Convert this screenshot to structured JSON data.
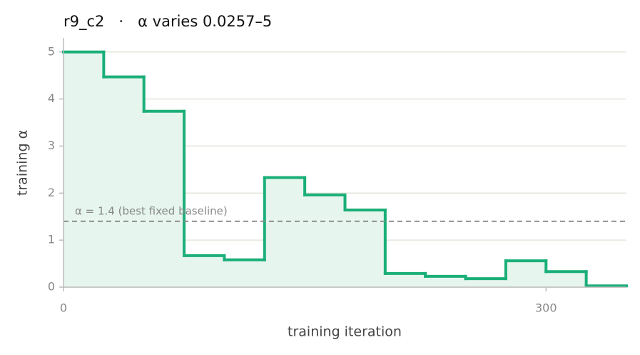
{
  "chart_data": {
    "type": "step",
    "title": "r9_c2   ·   α varies 0.0257–5",
    "x_label": "training iteration",
    "y_label": "training α",
    "x": [
      0,
      25,
      50,
      75,
      100,
      125,
      150,
      175,
      200,
      225,
      250,
      275,
      300,
      325
    ],
    "values": [
      5,
      4.47,
      3.74,
      0.67,
      0.58,
      2.33,
      1.96,
      1.64,
      0.29,
      0.23,
      0.18,
      0.56,
      0.33,
      0.0257
    ],
    "color": "#1aaf78",
    "fill_color": "#e6f5ee",
    "xlim": [
      0,
      350
    ],
    "ylim": [
      0,
      5.3
    ],
    "xticks": [
      0,
      300
    ],
    "yticks": [
      0,
      1,
      2,
      3,
      4,
      5
    ],
    "grid": true,
    "baseline": {
      "value": 1.4,
      "label": "α = 1.4 (best fixed baseline)"
    }
  }
}
